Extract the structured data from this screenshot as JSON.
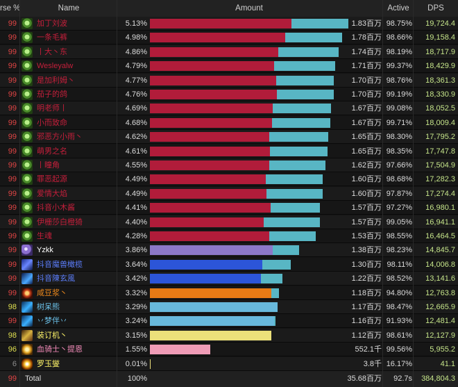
{
  "header": {
    "inv_label": "rse %",
    "name_label": "Name",
    "amount_label": "Amount",
    "active_label": "Active",
    "dps_label": "DPS"
  },
  "colors": {
    "dk_primary": "#b11c3a",
    "dk_secondary": "#58b6c4",
    "dk_name": "#c41f3b",
    "priest_primary": "#8c78c8",
    "mage_primary": "#2c55d8",
    "mage_name": "#5a7bf5",
    "warlock_primary": "#e67a15",
    "warlock_name": "#f08a1c",
    "shaman_primary": "#68b9dc",
    "shaman_name": "#6bc0e8",
    "rogue_primary": "#ece07a",
    "rogue_name": "#fff569",
    "paladin_primary": "#ef9cb6",
    "paladin_name": "#f58cba",
    "inv_high": "#e24545",
    "inv_mid": "#e0e050",
    "inv_low": "#8f8f8f"
  },
  "rows": [
    {
      "inv": "99",
      "icon": "unholy-skull-icon",
      "name": "加丁刘波",
      "pct": "5.13%",
      "bar1": 0.713,
      "bar2": 0.287,
      "amount": "1.83百万",
      "active": "98.75%",
      "dps": "19,724.4",
      "cls": "dk"
    },
    {
      "inv": "99",
      "icon": "unholy-skull-icon",
      "name": "一条毛裤",
      "pct": "4.98%",
      "bar1": 0.683,
      "bar2": 0.288,
      "amount": "1.78百万",
      "active": "98.66%",
      "dps": "19,158.4",
      "cls": "dk"
    },
    {
      "inv": "99",
      "icon": "unholy-skull-icon",
      "name": "丨大丶东",
      "pct": "4.86%",
      "bar1": 0.647,
      "bar2": 0.305,
      "amount": "1.74百万",
      "active": "98.19%",
      "dps": "18,717.9",
      "cls": "dk"
    },
    {
      "inv": "99",
      "icon": "unholy-skull-icon",
      "name": "Wesleyalw",
      "pct": "4.79%",
      "bar1": 0.627,
      "bar2": 0.306,
      "amount": "1.71百万",
      "active": "99.37%",
      "dps": "18,429.9",
      "cls": "dk"
    },
    {
      "inv": "99",
      "icon": "unholy-skull-icon",
      "name": "是加利姆丶",
      "pct": "4.77%",
      "bar1": 0.637,
      "bar2": 0.291,
      "amount": "1.70百万",
      "active": "98.76%",
      "dps": "18,361.3",
      "cls": "dk"
    },
    {
      "inv": "99",
      "icon": "unholy-skull-icon",
      "name": "茄子的鸽",
      "pct": "4.76%",
      "bar1": 0.64,
      "bar2": 0.287,
      "amount": "1.70百万",
      "active": "99.19%",
      "dps": "18,330.9",
      "cls": "dk"
    },
    {
      "inv": "99",
      "icon": "unholy-skull-icon",
      "name": "明老师丨",
      "pct": "4.69%",
      "bar1": 0.62,
      "bar2": 0.293,
      "amount": "1.67百万",
      "active": "99.08%",
      "dps": "18,052.5",
      "cls": "dk"
    },
    {
      "inv": "99",
      "icon": "unholy-skull-icon",
      "name": "小而致命",
      "pct": "4.68%",
      "bar1": 0.617,
      "bar2": 0.293,
      "amount": "1.67百万",
      "active": "99.71%",
      "dps": "18,009.4",
      "cls": "dk"
    },
    {
      "inv": "99",
      "icon": "unholy-skull-icon",
      "name": "邪恶方小雨丶",
      "pct": "4.62%",
      "bar1": 0.603,
      "bar2": 0.296,
      "amount": "1.65百万",
      "active": "98.30%",
      "dps": "17,795.2",
      "cls": "dk"
    },
    {
      "inv": "99",
      "icon": "unholy-skull-icon",
      "name": "萌男之名",
      "pct": "4.61%",
      "bar1": 0.606,
      "bar2": 0.291,
      "amount": "1.65百万",
      "active": "98.35%",
      "dps": "17,747.8",
      "cls": "dk"
    },
    {
      "inv": "99",
      "icon": "unholy-skull-icon",
      "name": "丨瞳角",
      "pct": "4.55%",
      "bar1": 0.601,
      "bar2": 0.284,
      "amount": "1.62百万",
      "active": "97.66%",
      "dps": "17,504.9",
      "cls": "dk"
    },
    {
      "inv": "99",
      "icon": "unholy-skull-icon",
      "name": "罪恶起源",
      "pct": "4.49%",
      "bar1": 0.584,
      "bar2": 0.287,
      "amount": "1.60百万",
      "active": "98.68%",
      "dps": "17,282.3",
      "cls": "dk"
    },
    {
      "inv": "99",
      "icon": "unholy-skull-icon",
      "name": "爱情大焰",
      "pct": "4.49%",
      "bar1": 0.587,
      "bar2": 0.283,
      "amount": "1.60百万",
      "active": "97.87%",
      "dps": "17,274.4",
      "cls": "dk"
    },
    {
      "inv": "99",
      "icon": "unholy-skull-icon",
      "name": "抖音小木酱",
      "pct": "4.41%",
      "bar1": 0.608,
      "bar2": 0.248,
      "amount": "1.57百万",
      "active": "97.27%",
      "dps": "16,980.1",
      "cls": "dk"
    },
    {
      "inv": "99",
      "icon": "unholy-skull-icon",
      "name": "伊栅莎白橙猗",
      "pct": "4.40%",
      "bar1": 0.573,
      "bar2": 0.283,
      "amount": "1.57百万",
      "active": "99.05%",
      "dps": "16,941.1",
      "cls": "dk"
    },
    {
      "inv": "99",
      "icon": "unholy-skull-icon",
      "name": "生魂",
      "pct": "4.28%",
      "bar1": 0.601,
      "bar2": 0.234,
      "amount": "1.53百万",
      "active": "98.55%",
      "dps": "16,464.5",
      "cls": "dk"
    },
    {
      "inv": "99",
      "icon": "shadow-priest-icon",
      "name": "Yzkk",
      "pct": "3.86%",
      "bar1": 0.62,
      "bar2": 0.133,
      "amount": "1.38百万",
      "active": "98.23%",
      "dps": "14,845.7",
      "cls": "priest"
    },
    {
      "inv": "99",
      "icon": "arcane-mage-icon",
      "name": "抖音魔兽橄榄",
      "pct": "3.64%",
      "bar1": 0.566,
      "bar2": 0.144,
      "amount": "1.30百万",
      "active": "98.11%",
      "dps": "14,006.8",
      "cls": "mage"
    },
    {
      "inv": "99",
      "icon": "frost-mage-icon",
      "name": "抖音陳玄風",
      "pct": "3.42%",
      "bar1": 0.559,
      "bar2": 0.108,
      "amount": "1.22百万",
      "active": "98.52%",
      "dps": "13,141.6",
      "cls": "mage"
    },
    {
      "inv": "99",
      "icon": "warlock-fire-icon",
      "name": "咸豆浆丶",
      "pct": "3.32%",
      "bar1": 0.612,
      "bar2": 0.038,
      "amount": "1.18百万",
      "active": "94.80%",
      "dps": "12,763.8",
      "cls": "warlock"
    },
    {
      "inv": "98",
      "icon": "shaman-icon",
      "name": "树呆熊",
      "pct": "3.29%",
      "bar1": 0.643,
      "bar2": 0.0,
      "amount": "1.17百万",
      "active": "98.47%",
      "dps": "12,665.9",
      "cls": "shaman"
    },
    {
      "inv": "99",
      "icon": "elemental-shaman-icon",
      "name": "丷梦伴丷",
      "pct": "3.24%",
      "bar1": 0.626,
      "bar2": 0.007,
      "amount": "1.16百万",
      "active": "91.93%",
      "dps": "12,481.4",
      "cls": "shaman"
    },
    {
      "inv": "98",
      "icon": "rogue-icon",
      "name": "装订机丶",
      "pct": "3.15%",
      "bar1": 0.613,
      "bar2": 0.0,
      "amount": "1.12百万",
      "active": "98.61%",
      "dps": "12,127.9",
      "cls": "rogue"
    },
    {
      "inv": "96",
      "icon": "paladin-icon",
      "name": "血骑士丶提恩",
      "pct": "1.55%",
      "bar1": 0.304,
      "bar2": 0.0,
      "amount": "552.1千",
      "active": "99.56%",
      "dps": "5,955.2",
      "cls": "paladin"
    },
    {
      "inv": "6",
      "icon": "spark-icon",
      "name": "罗玉燮",
      "pct": "0.01%",
      "bar1": 0.004,
      "bar2": 0.0,
      "amount": "3.8千",
      "active": "16.17%",
      "dps": "41.1",
      "cls": "rogue"
    }
  ],
  "total": {
    "inv": "99",
    "label": "Total",
    "pct": "100%",
    "amount": "35.68百万",
    "active": "92.7s",
    "dps": "384,804.3"
  }
}
